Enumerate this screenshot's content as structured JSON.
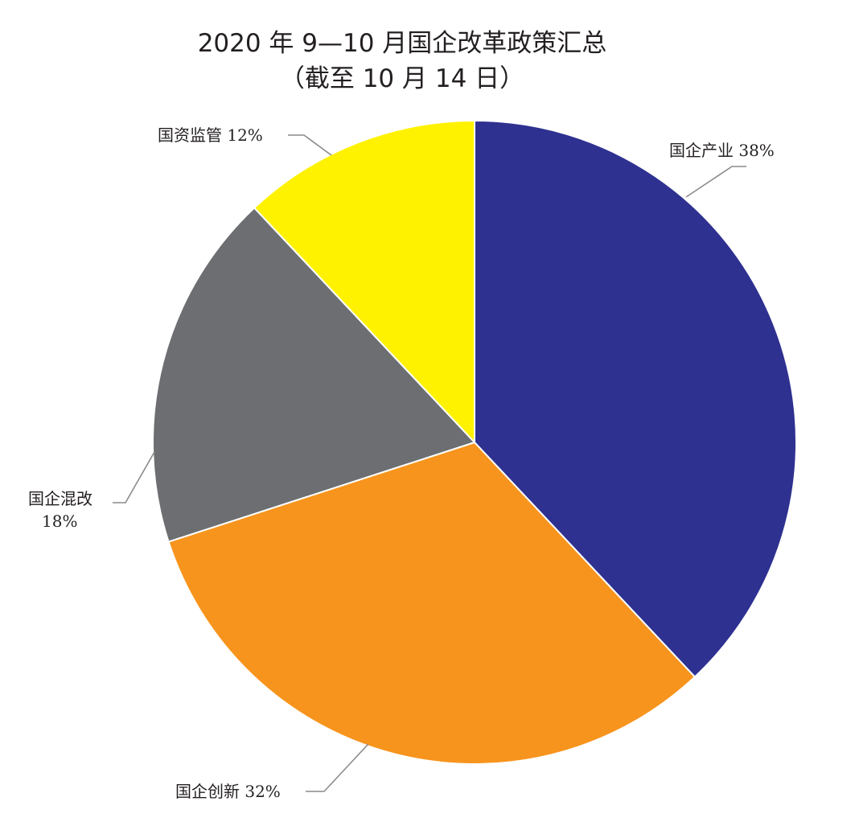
{
  "chart_data": {
    "type": "pie",
    "title": "2020 年 9—10 月国企改革政策汇总",
    "subtitle": "（截至 10 月 14 日）",
    "slices": [
      {
        "name": "国企产业",
        "value": 38,
        "label": "国企产业 38%",
        "color": "#2e3190"
      },
      {
        "name": "国企创新",
        "value": 32,
        "label": "国企创新 32%",
        "color": "#f7941d"
      },
      {
        "name": "国企混改",
        "value": 18,
        "label_lines": [
          "国企混改",
          "18%"
        ],
        "color": "#6d6e71"
      },
      {
        "name": "国资监管",
        "value": 12,
        "label": "国资监管 12%",
        "color": "#fff200"
      }
    ],
    "start_angle": "12 o'clock",
    "direction": "clockwise",
    "legend": "none"
  }
}
